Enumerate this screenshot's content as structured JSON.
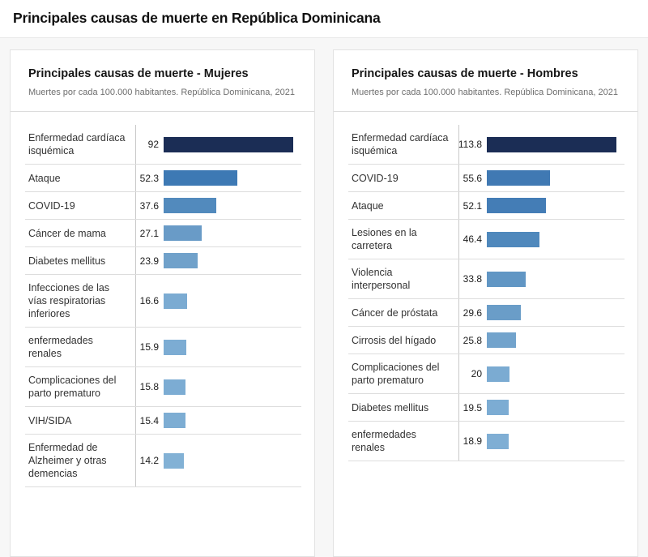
{
  "page": {
    "title": "Principales causas de muerte en República Dominicana"
  },
  "chart_data": [
    {
      "type": "bar",
      "orientation": "horizontal",
      "title": "Principales causas de muerte - Mujeres",
      "subtitle": "Muertes por cada 100.000 habitantes. República Dominicana, 2021",
      "categories": [
        "Enfermedad cardíaca isquémica",
        "Ataque",
        "COVID-19",
        "Cáncer de mama",
        "Diabetes mellitus",
        "Infecciones de las vías respiratorias inferiores",
        "enfermedades renales",
        "Complicaciones del parto prematuro",
        "VIH/SIDA",
        "Enfermedad de Alzheimer y otras demencias"
      ],
      "values": [
        92,
        52.3,
        37.6,
        27.1,
        23.9,
        16.6,
        15.9,
        15.8,
        15.4,
        14.2
      ],
      "value_labels": [
        "92",
        "52.3",
        "37.6",
        "27.1",
        "23.9",
        "16.6",
        "15.9",
        "15.8",
        "15.4",
        "14.2"
      ],
      "bar_colors": [
        "#1b2d55",
        "#3d79b4",
        "#528abd",
        "#699bc7",
        "#70a1ca",
        "#7babd2",
        "#7cacd3",
        "#7cacd3",
        "#7dadd3",
        "#82b1d5"
      ],
      "xlim": [
        0,
        92
      ],
      "grid": false,
      "legend": false
    },
    {
      "type": "bar",
      "orientation": "horizontal",
      "title": "Principales causas de muerte - Hombres",
      "subtitle": "Muertes por cada 100.000 habitantes. República Dominicana, 2021",
      "categories": [
        "Enfermedad cardíaca isquémica",
        "COVID-19",
        "Ataque",
        "Lesiones en la carretera",
        "Violencia interpersonal",
        "Cáncer de próstata",
        "Cirrosis del hígado",
        "Complicaciones del parto prematuro",
        "Diabetes mellitus",
        "enfermedades renales"
      ],
      "values": [
        113.8,
        55.6,
        52.1,
        46.4,
        33.8,
        29.6,
        25.8,
        20,
        19.5,
        18.9
      ],
      "value_labels": [
        "113.8",
        "55.6",
        "52.1",
        "46.4",
        "33.8",
        "29.6",
        "25.8",
        "20",
        "19.5",
        "18.9"
      ],
      "bar_colors": [
        "#1b2d55",
        "#4079b3",
        "#447db6",
        "#4f88bc",
        "#6196c4",
        "#6a9dc8",
        "#72a3cc",
        "#7babd2",
        "#7cacd3",
        "#7faed4"
      ],
      "xlim": [
        0,
        113.8
      ],
      "grid": false,
      "legend": false
    }
  ],
  "colors": {
    "bar_max": "#1b2d55",
    "bar_min": "#82b1d5",
    "card_border": "#e2e2e2",
    "divider": "#dddddd"
  }
}
